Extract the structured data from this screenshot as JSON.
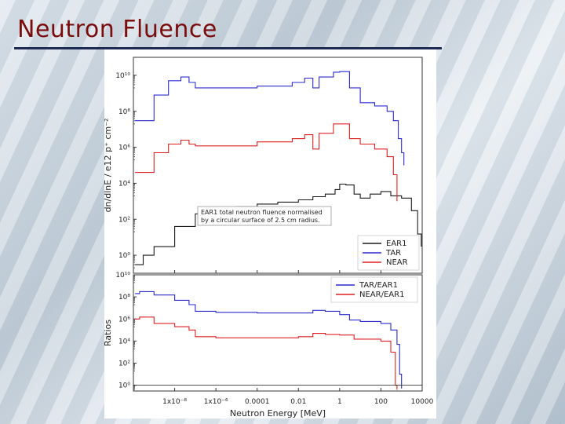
{
  "slide": {
    "title": "Neutron Fluence"
  },
  "colors": {
    "title": "#7a0c0c",
    "rule": "#1d2b55",
    "EAR1": "#1a1a1a",
    "TAR": "#2a2ad0",
    "NEAR": "#e02020"
  },
  "chart_data": [
    {
      "type": "line",
      "panel": "top",
      "ylabel": "dn/dlnE / e12 p⁺ cm⁻²",
      "xscale": "log",
      "yscale": "log",
      "xlim": [
        1e-10,
        10000
      ],
      "ylim": [
        0.1,
        100000000000.0
      ],
      "yticks": [
        {
          "v": 1,
          "label": "10⁰"
        },
        {
          "v": 100,
          "label": "10²"
        },
        {
          "v": 10000.0,
          "label": "10⁴"
        },
        {
          "v": 1000000.0,
          "label": "10⁶"
        },
        {
          "v": 100000000.0,
          "label": "10⁸"
        },
        {
          "v": 10000000000.0,
          "label": "10¹⁰"
        }
      ],
      "annotation": [
        "EAR1 total neutron fluence normalised",
        "by a circular surface of 2.5 cm radius."
      ],
      "legend": {
        "placement": "bottom-right",
        "entries": [
          "EAR1",
          "TAR",
          "NEAR"
        ]
      },
      "series": [
        {
          "name": "EAR1",
          "color": "#1a1a1a",
          "points": [
            [
              1.2e-10,
              0.3
            ],
            [
              3e-10,
              1
            ],
            [
              1e-09,
              3
            ],
            [
              1e-08,
              40
            ],
            [
              1e-07,
              200
            ],
            [
              1e-06,
              400
            ],
            [
              1e-05,
              500
            ],
            [
              0.0001,
              700
            ],
            [
              0.001,
              900
            ],
            [
              0.01,
              1200
            ],
            [
              0.05,
              1800
            ],
            [
              0.2,
              2500
            ],
            [
              0.6,
              4500
            ],
            [
              1,
              9000
            ],
            [
              2,
              8000
            ],
            [
              5,
              2500
            ],
            [
              10,
              1500
            ],
            [
              30,
              2500
            ],
            [
              100,
              3500
            ],
            [
              300,
              2000
            ],
            [
              1000,
              1500
            ],
            [
              3000,
              300
            ],
            [
              6000,
              15
            ],
            [
              9000,
              3
            ]
          ]
        },
        {
          "name": "TAR",
          "color": "#2a2ad0",
          "points": [
            [
              1.2e-10,
              30000000.0
            ],
            [
              1e-09,
              800000000.0
            ],
            [
              5e-09,
              5000000000.0
            ],
            [
              2e-08,
              8000000000.0
            ],
            [
              5e-08,
              4000000000.0
            ],
            [
              1e-07,
              2000000000.0
            ],
            [
              1e-06,
              2000000000.0
            ],
            [
              0.0001,
              2500000000.0
            ],
            [
              0.005,
              4000000000.0
            ],
            [
              0.02,
              7000000000.0
            ],
            [
              0.05,
              2000000000.0
            ],
            [
              0.1,
              8000000000.0
            ],
            [
              0.5,
              15000000000.0
            ],
            [
              1,
              16000000000.0
            ],
            [
              3,
              2000000000.0
            ],
            [
              10,
              300000000.0
            ],
            [
              50,
              200000000.0
            ],
            [
              200,
              100000000.0
            ],
            [
              400,
              30000000.0
            ],
            [
              700,
              3000000.0
            ],
            [
              1000,
              500000.0
            ],
            [
              1300,
              100000.0
            ]
          ]
        },
        {
          "name": "NEAR",
          "color": "#e02020",
          "points": [
            [
              1.2e-10,
              40000.0
            ],
            [
              1e-09,
              500000.0
            ],
            [
              5e-09,
              1500000.0
            ],
            [
              2e-08,
              2500000.0
            ],
            [
              5e-08,
              1500000.0
            ],
            [
              1e-07,
              1200000.0
            ],
            [
              1e-06,
              1200000.0
            ],
            [
              0.0001,
              2000000.0
            ],
            [
              0.005,
              3000000.0
            ],
            [
              0.02,
              5000000.0
            ],
            [
              0.05,
              800000.0
            ],
            [
              0.1,
              6000000.0
            ],
            [
              0.5,
              20000000.0
            ],
            [
              1,
              20000000.0
            ],
            [
              3,
              3000000.0
            ],
            [
              10,
              1500000.0
            ],
            [
              50,
              800000.0
            ],
            [
              200,
              300000.0
            ],
            [
              400,
              30000.0
            ],
            [
              600,
              1000.0
            ]
          ]
        }
      ]
    },
    {
      "type": "line",
      "panel": "bottom",
      "ylabel": "Ratios",
      "xlabel": "Neutron Energy [MeV]",
      "xscale": "log",
      "yscale": "log",
      "xlim": [
        1e-10,
        10000
      ],
      "ylim": [
        0.3,
        10000000000.0
      ],
      "xticks": [
        {
          "v": 1e-08,
          "label": "1x10⁻⁸"
        },
        {
          "v": 1e-06,
          "label": "1x10⁻⁶"
        },
        {
          "v": 0.0001,
          "label": "0.0001"
        },
        {
          "v": 0.01,
          "label": "0.01"
        },
        {
          "v": 1,
          "label": "1"
        },
        {
          "v": 100,
          "label": "100"
        },
        {
          "v": 10000,
          "label": "10000"
        }
      ],
      "yticks": [
        {
          "v": 1,
          "label": "10⁰"
        },
        {
          "v": 100,
          "label": "10²"
        },
        {
          "v": 10000.0,
          "label": "10⁴"
        },
        {
          "v": 1000000.0,
          "label": "10⁶"
        },
        {
          "v": 100000000.0,
          "label": "10⁸"
        },
        {
          "v": 10000000000.0,
          "label": "10¹⁰"
        }
      ],
      "legend": {
        "placement": "top-right",
        "entries": [
          "TAR/EAR1",
          "NEAR/EAR1"
        ]
      },
      "series": [
        {
          "name": "TAR/EAR1",
          "color": "#2a2ad0",
          "points": [
            [
              1.2e-10,
              200000000.0
            ],
            [
              2e-10,
              300000000.0
            ],
            [
              1e-09,
              150000000.0
            ],
            [
              1e-08,
              50000000.0
            ],
            [
              5e-08,
              20000000.0
            ],
            [
              1e-07,
              5000000.0
            ],
            [
              1e-06,
              4000000.0
            ],
            [
              0.0001,
              3500000.0
            ],
            [
              0.01,
              3500000.0
            ],
            [
              0.05,
              6000000.0
            ],
            [
              0.2,
              5000000.0
            ],
            [
              1,
              2500000.0
            ],
            [
              3,
              800000.0
            ],
            [
              10,
              600000.0
            ],
            [
              100,
              400000.0
            ],
            [
              300,
              100000.0
            ],
            [
              600,
              5000.0
            ],
            [
              800,
              10
            ],
            [
              1000,
              0.5
            ]
          ]
        },
        {
          "name": "NEAR/EAR1",
          "color": "#e02020",
          "points": [
            [
              1.2e-10,
              1000000.0
            ],
            [
              2e-10,
              1500000.0
            ],
            [
              1e-09,
              400000.0
            ],
            [
              1e-08,
              200000.0
            ],
            [
              5e-08,
              100000.0
            ],
            [
              1e-07,
              25000.0
            ],
            [
              1e-06,
              20000.0
            ],
            [
              0.0001,
              20000.0
            ],
            [
              0.01,
              25000.0
            ],
            [
              0.05,
              50000.0
            ],
            [
              0.2,
              40000.0
            ],
            [
              1,
              35000.0
            ],
            [
              5,
              15000.0
            ],
            [
              20,
              15000.0
            ],
            [
              100,
              10000.0
            ],
            [
              300,
              1000.0
            ],
            [
              500,
              1
            ],
            [
              600,
              0.4
            ]
          ]
        },
        {
          "name": "unity",
          "color": "#1a1a1a",
          "points": [
            [
              1e-10,
              1
            ],
            [
              10000,
              1
            ]
          ]
        }
      ]
    }
  ]
}
